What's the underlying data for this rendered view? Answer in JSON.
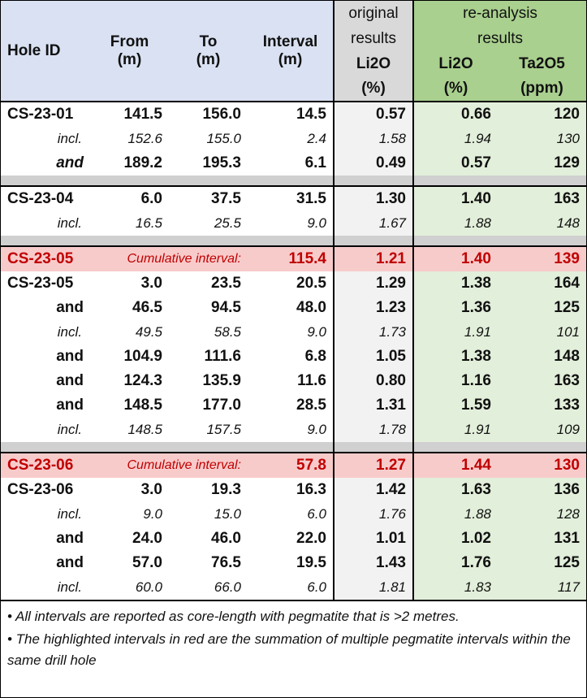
{
  "header": {
    "hole_id": "Hole ID",
    "from_line1": "From",
    "from_line2": "(m)",
    "to_line1": "To",
    "to_line2": "(m)",
    "interval_line1": "Interval",
    "interval_line2": "(m)",
    "original_line1": "original",
    "original_line2": "results",
    "original_li2o": "Li2O",
    "original_unit": "(%)",
    "reanalysis_line1": "re-analysis",
    "reanalysis_line2": "results",
    "re_li2o": "Li2O",
    "re_li2o_unit": "(%)",
    "re_ta2o5": "Ta2O5",
    "re_ta2o5_unit": "(ppm)"
  },
  "rows": [
    {
      "id": "CS-23-01",
      "from": "141.5",
      "to": "156.0",
      "interval": "14.5",
      "orig": "0.57",
      "li": "0.66",
      "ta": "120"
    },
    {
      "id": "incl.",
      "from": "152.6",
      "to": "155.0",
      "interval": "2.4",
      "orig": "1.58",
      "li": "1.94",
      "ta": "130"
    },
    {
      "id": "and",
      "from": "189.2",
      "to": "195.3",
      "interval": "6.1",
      "orig": "0.49",
      "li": "0.57",
      "ta": "129"
    },
    {
      "id": "CS-23-04",
      "from": "6.0",
      "to": "37.5",
      "interval": "31.5",
      "orig": "1.30",
      "li": "1.40",
      "ta": "163"
    },
    {
      "id": "incl.",
      "from": "16.5",
      "to": "25.5",
      "interval": "9.0",
      "orig": "1.67",
      "li": "1.88",
      "ta": "148"
    },
    {
      "id": "CS-23-05",
      "cum_label": "Cumulative interval:",
      "interval": "115.4",
      "orig": "1.21",
      "li": "1.40",
      "ta": "139"
    },
    {
      "id": "CS-23-05",
      "from": "3.0",
      "to": "23.5",
      "interval": "20.5",
      "orig": "1.29",
      "li": "1.38",
      "ta": "164"
    },
    {
      "id": "and",
      "from": "46.5",
      "to": "94.5",
      "interval": "48.0",
      "orig": "1.23",
      "li": "1.36",
      "ta": "125"
    },
    {
      "id": "incl.",
      "from": "49.5",
      "to": "58.5",
      "interval": "9.0",
      "orig": "1.73",
      "li": "1.91",
      "ta": "101"
    },
    {
      "id": "and",
      "from": "104.9",
      "to": "111.6",
      "interval": "6.8",
      "orig": "1.05",
      "li": "1.38",
      "ta": "148"
    },
    {
      "id": "and",
      "from": "124.3",
      "to": "135.9",
      "interval": "11.6",
      "orig": "0.80",
      "li": "1.16",
      "ta": "163"
    },
    {
      "id": "and",
      "from": "148.5",
      "to": "177.0",
      "interval": "28.5",
      "orig": "1.31",
      "li": "1.59",
      "ta": "133"
    },
    {
      "id": "incl.",
      "from": "148.5",
      "to": "157.5",
      "interval": "9.0",
      "orig": "1.78",
      "li": "1.91",
      "ta": "109"
    },
    {
      "id": "CS-23-06",
      "cum_label": "Cumulative interval:",
      "interval": "57.8",
      "orig": "1.27",
      "li": "1.44",
      "ta": "130"
    },
    {
      "id": "CS-23-06",
      "from": "3.0",
      "to": "19.3",
      "interval": "16.3",
      "orig": "1.42",
      "li": "1.63",
      "ta": "136"
    },
    {
      "id": "incl.",
      "from": "9.0",
      "to": "15.0",
      "interval": "6.0",
      "orig": "1.76",
      "li": "1.88",
      "ta": "128"
    },
    {
      "id": "and",
      "from": "24.0",
      "to": "46.0",
      "interval": "22.0",
      "orig": "1.01",
      "li": "1.02",
      "ta": "131"
    },
    {
      "id": "and",
      "from": "57.0",
      "to": "76.5",
      "interval": "19.5",
      "orig": "1.43",
      "li": "1.76",
      "ta": "125"
    },
    {
      "id": "incl.",
      "from": "60.0",
      "to": "66.0",
      "interval": "6.0",
      "orig": "1.81",
      "li": "1.83",
      "ta": "117"
    }
  ],
  "notes": [
    "• All intervals are reported as core-length with pegmatite that is >2 metres.",
    "• The highlighted intervals in red are the summation of multiple pegmatite intervals within the same drill hole"
  ],
  "colors": {
    "header_blue": "#d9e1f2",
    "original_gray": "#d9d9d9",
    "reanalysis_green": "#a9d08e",
    "highlight_red_bg": "#f8cbcb",
    "highlight_red_text": "#c00000"
  }
}
